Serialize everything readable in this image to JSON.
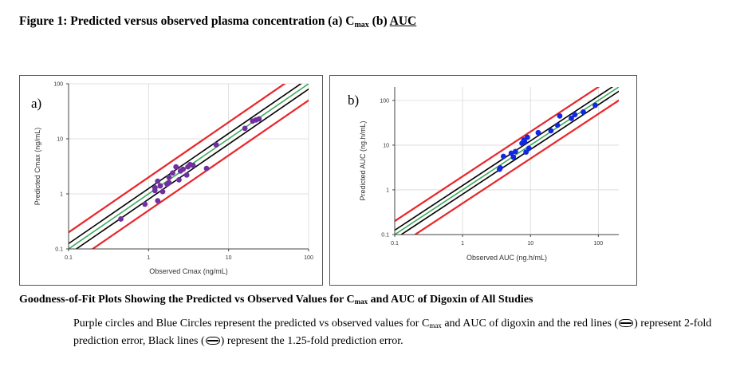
{
  "figure": {
    "title_pre": "Figure 1: Predicted versus observed plasma concentration (a) C",
    "title_sub": "max",
    "title_mid": " (b) ",
    "title_auc": "AUC"
  },
  "panel_a": {
    "label": "a)"
  },
  "panel_b": {
    "label": "b)"
  },
  "caption": {
    "title_pre": "Goodness-of-Fit Plots Showing the Predicted vs Observed Values for C",
    "title_sub": "max",
    "title_post": " and AUC of Digoxin of All Studies",
    "body_1": "Purple circles and Blue Circles represent the predicted vs observed values for C",
    "body_sub": "max",
    "body_2": " and AUC of digoxin and the red lines (",
    "body_3": ") represent 2-fold prediction error, Black lines (",
    "body_4": ") represent the 1.25-fold prediction error."
  },
  "colors": {
    "red": "#e8262a",
    "black": "#000000",
    "green": "#3daa5c",
    "purple": "#7030a0",
    "blue": "#1428e0",
    "grid": "#d9d9d9"
  },
  "chart_data": [
    {
      "type": "scatter",
      "title": "",
      "xlabel": "Observed Cmax (ng/mL)",
      "ylabel": "Predicted Cmax (ng/mL)",
      "xscale": "log",
      "yscale": "log",
      "xlim": [
        0.1,
        100
      ],
      "ylim": [
        0.1,
        100
      ],
      "xticks": [
        "0.1",
        "1",
        "10",
        "100"
      ],
      "yticks": [
        "0.1",
        "1",
        "10",
        "100"
      ],
      "grid": true,
      "reference_lines": [
        {
          "name": "2-fold prediction error",
          "color": "red",
          "factors": [
            0.5,
            2
          ]
        },
        {
          "name": "1.25-fold prediction error",
          "color": "black",
          "factors": [
            0.8,
            1.25
          ]
        },
        {
          "name": "line of unity",
          "color": "green",
          "factors": [
            1
          ]
        }
      ],
      "series": [
        {
          "color": "purple",
          "x": [
            0.45,
            0.9,
            1.2,
            1.2,
            1.3,
            1.3,
            1.4,
            1.5,
            1.7,
            1.8,
            1.8,
            2.0,
            2.2,
            2.4,
            2.5,
            2.7,
            3.0,
            3.1,
            3.3,
            3.6,
            5.3,
            7.0,
            16,
            20,
            22,
            24
          ],
          "y": [
            0.35,
            0.65,
            1.15,
            1.3,
            0.75,
            1.7,
            1.4,
            1.1,
            1.5,
            1.6,
            2.0,
            2.4,
            3.1,
            1.8,
            2.6,
            2.8,
            2.2,
            3.1,
            3.4,
            3.3,
            2.9,
            7.8,
            15.5,
            21,
            22,
            23
          ]
        }
      ]
    },
    {
      "type": "scatter",
      "title": "",
      "xlabel": "Observed AUC (ng.h/mL)",
      "ylabel": "Predicted AUC (ng.h/mL)",
      "xscale": "log",
      "yscale": "log",
      "xlim": [
        0.1,
        200
      ],
      "ylim": [
        0.1,
        200
      ],
      "xticks": [
        "0.1",
        "1",
        "10",
        "100"
      ],
      "yticks": [
        "0.1",
        "1",
        "10",
        "100"
      ],
      "grid": true,
      "reference_lines": [
        {
          "name": "2-fold prediction error",
          "color": "red",
          "factors": [
            0.5,
            2
          ]
        },
        {
          "name": "1.25-fold prediction error",
          "color": "black",
          "factors": [
            0.8,
            1.25
          ]
        },
        {
          "name": "line of unity",
          "color": "green",
          "factors": [
            1
          ]
        }
      ],
      "series": [
        {
          "color": "blue",
          "x": [
            3.5,
            3.6,
            4.0,
            5.2,
            5.6,
            6.0,
            7.5,
            8.0,
            8.2,
            8.6,
            9.0,
            9.5,
            13,
            20,
            25,
            27,
            40,
            45,
            60,
            90
          ],
          "y": [
            2.9,
            3.1,
            5.6,
            6.6,
            5.4,
            7.2,
            11,
            13,
            12,
            7.0,
            15,
            8.5,
            19,
            21,
            28,
            45,
            40,
            48,
            55,
            78
          ]
        }
      ]
    }
  ]
}
